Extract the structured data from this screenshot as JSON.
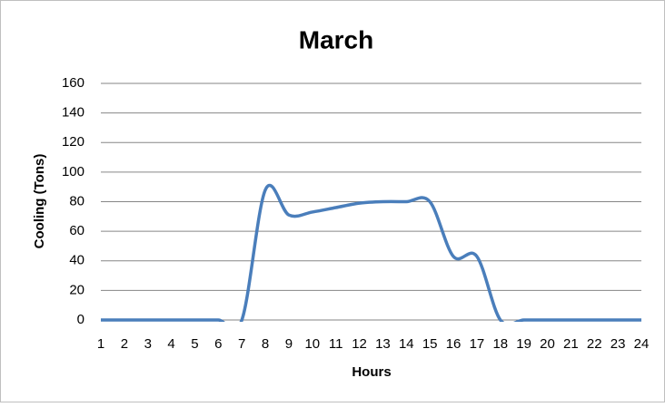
{
  "chart_data": {
    "type": "line",
    "title": "March",
    "x_label": "Hours",
    "y_label": "Cooling (Tons)",
    "categories": [
      "1",
      "2",
      "3",
      "4",
      "5",
      "6",
      "7",
      "8",
      "9",
      "10",
      "11",
      "12",
      "13",
      "14",
      "15",
      "16",
      "17",
      "18",
      "19",
      "20",
      "21",
      "22",
      "23",
      "24"
    ],
    "series": [
      {
        "name": "Cooling",
        "color": "#4a7ebb",
        "values": [
          0,
          0,
          0,
          0,
          0,
          0,
          0,
          88,
          71,
          73,
          76,
          79,
          80,
          80,
          80,
          43,
          43,
          0,
          0,
          0,
          0,
          0,
          0,
          0
        ]
      }
    ],
    "ylim": [
      0,
      160
    ],
    "yticks": [
      0,
      20,
      40,
      60,
      80,
      100,
      120,
      140,
      160
    ],
    "grid": true,
    "smooth": true
  }
}
